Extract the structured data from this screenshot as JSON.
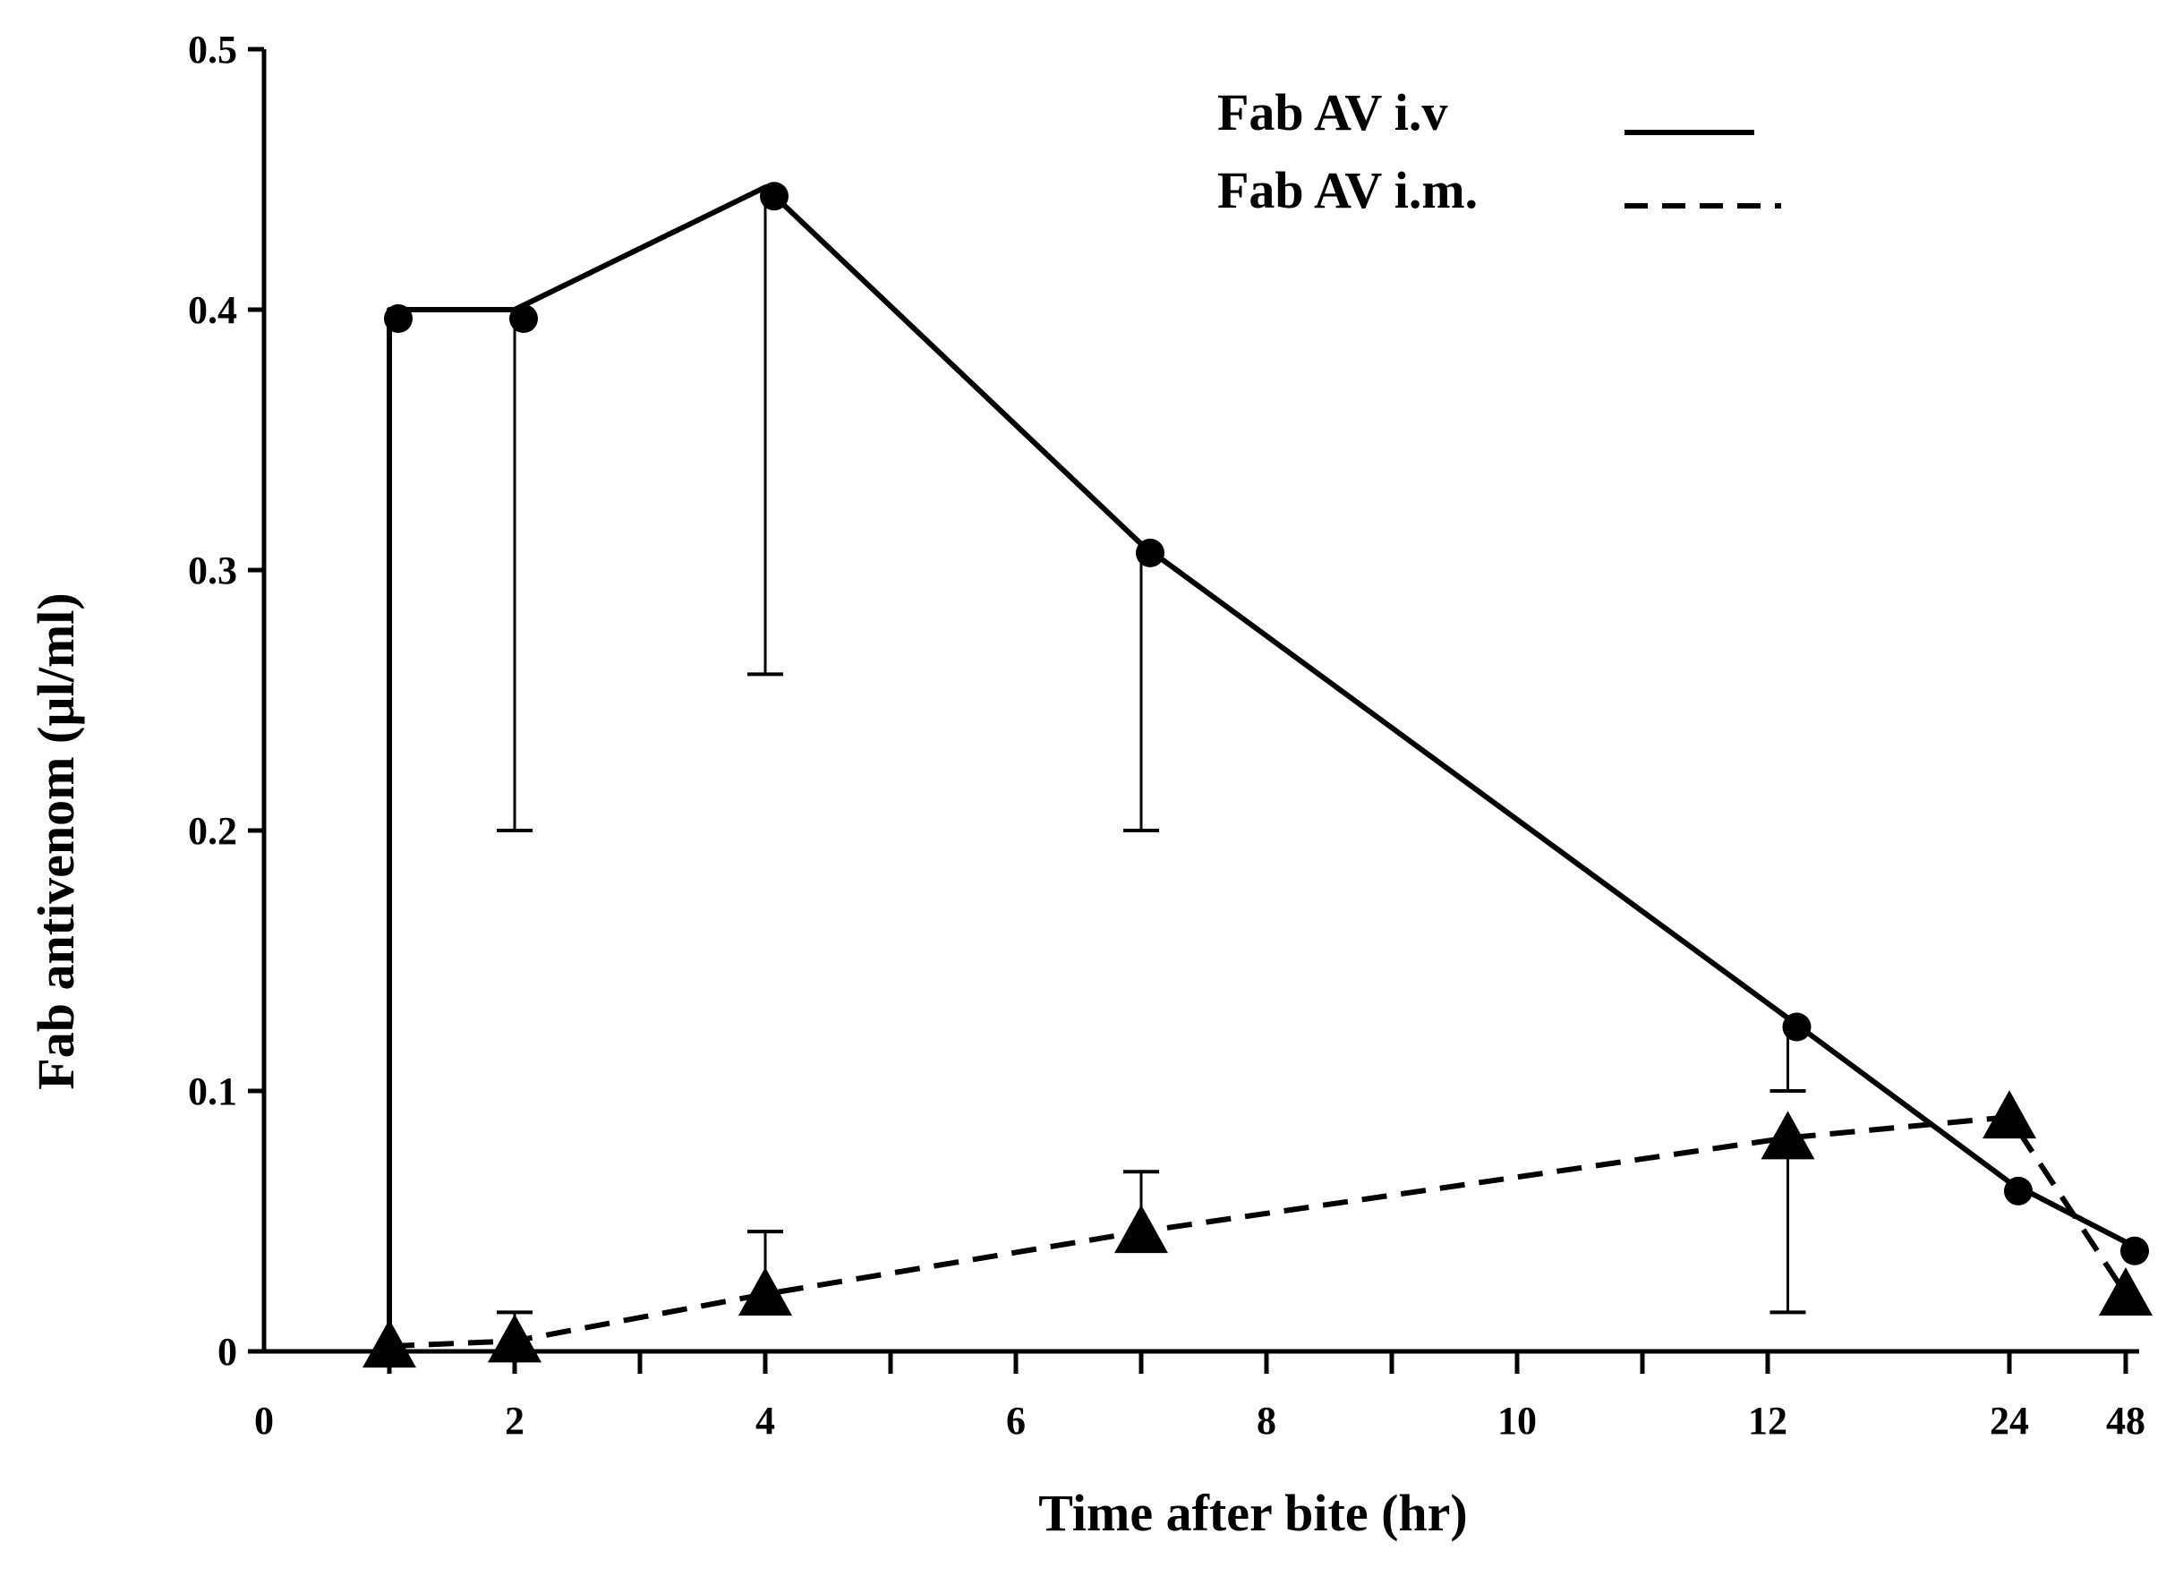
{
  "chart_data": {
    "type": "line",
    "title": "",
    "xlabel": "Time after bite (hr)",
    "ylabel": "Fab antivenom (µl/ml)",
    "ylim": [
      0,
      0.5
    ],
    "yticks": [
      0,
      0.1,
      0.2,
      0.3,
      0.4,
      0.5
    ],
    "ytick_labels": [
      "0",
      "0.1",
      "0.2",
      "0.3",
      "0.4",
      "0.5"
    ],
    "xticks": [
      0,
      2,
      4,
      6,
      8,
      10,
      12,
      24,
      48
    ],
    "xtick_labels": [
      "0",
      "2",
      "4",
      "6",
      "8",
      "10",
      "12",
      "24",
      "48"
    ],
    "x_axis_scale": "categorical-time (labels 0,2,4,...,12 then 24, 48)",
    "grid": false,
    "legend_position": "top-right",
    "series": [
      {
        "name": "Fab AV i.v",
        "line_style": "solid",
        "marker": "circle",
        "color": "#000000",
        "points": [
          {
            "x": 1,
            "y": 0.0
          },
          {
            "x": 1,
            "y": 0.4
          },
          {
            "x": 2,
            "y": 0.4
          },
          {
            "x": 4,
            "y": 0.447
          },
          {
            "x": 7,
            "y": 0.31
          },
          {
            "x": 13,
            "y": 0.128
          },
          {
            "x": 24,
            "y": 0.065
          },
          {
            "x": 48,
            "y": 0.042
          }
        ],
        "error_bars": [
          {
            "x": 2,
            "low": 0.2
          },
          {
            "x": 4,
            "low": 0.26
          },
          {
            "x": 7,
            "low": 0.2
          },
          {
            "x": 13,
            "low": 0.1
          }
        ]
      },
      {
        "name": "Fab AV i.m.",
        "line_style": "dashed",
        "marker": "triangle",
        "color": "#000000",
        "points": [
          {
            "x": 1,
            "y": 0.002
          },
          {
            "x": 2,
            "y": 0.004
          },
          {
            "x": 4,
            "y": 0.022
          },
          {
            "x": 7,
            "y": 0.046
          },
          {
            "x": 13,
            "y": 0.082
          },
          {
            "x": 24,
            "y": 0.09
          },
          {
            "x": 48,
            "y": 0.022
          }
        ],
        "error_bars": [
          {
            "x": 2,
            "high": 0.015
          },
          {
            "x": 4,
            "high": 0.046
          },
          {
            "x": 7,
            "high": 0.069
          },
          {
            "x": 13,
            "low": 0.015
          }
        ]
      }
    ]
  }
}
